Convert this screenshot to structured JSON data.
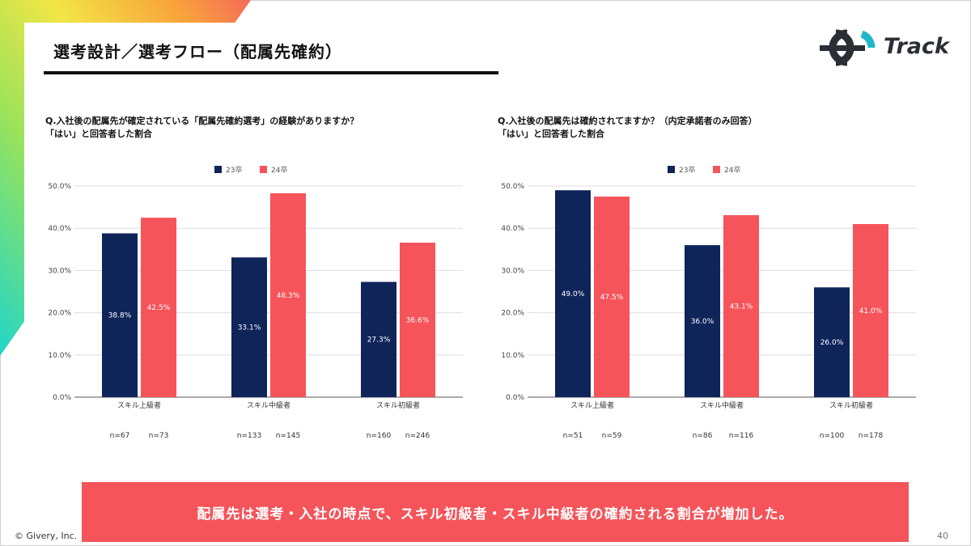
{
  "slide": {
    "title": "選考設計／選考フロー（配属先確約）",
    "logo_text": "Track",
    "footer": "© Givery, Inc.",
    "page_number": "40",
    "conclusion": "配属先は選考・入社の時点で、スキル初級者・スキル中級者の確約される割合が増加した。"
  },
  "questions": [
    {
      "line1": "Q.入社後の配属先が確定されている「配属先確約選考」の経験がありますか？",
      "line2": "「はい」と回答者した割合"
    },
    {
      "line1": "Q.入社後の配属先は確約されてますか？（内定承諾者のみ回答）",
      "line2": "「はい」と回答者した割合"
    }
  ],
  "colors": {
    "series_23": "#0f2459",
    "series_24": "#f5545a",
    "banner": "#f5545a"
  },
  "chart_data": [
    {
      "type": "bar",
      "title": "Q.入社後の配属先が確定されている「配属先確約選考」の経験がありますか？",
      "categories": [
        "スキル上級者",
        "スキル中級者",
        "スキル初級者"
      ],
      "series": [
        {
          "name": "23卒",
          "values": [
            38.8,
            33.1,
            27.3
          ],
          "labels": [
            "38.8%",
            "33.1%",
            "27.3%"
          ],
          "n": [
            "n=67",
            "n=133",
            "n=160"
          ]
        },
        {
          "name": "24卒",
          "values": [
            42.5,
            48.3,
            36.6
          ],
          "labels": [
            "42.5%",
            "48.3%",
            "36.6%"
          ],
          "n": [
            "n=73",
            "n=145",
            "n=246"
          ]
        }
      ],
      "yticks": [
        0,
        10,
        20,
        30,
        40,
        50
      ],
      "ytick_labels": [
        "0.0%",
        "10.0%",
        "20.0%",
        "30.0%",
        "40.0%",
        "50.0%"
      ],
      "ylim": [
        0,
        50
      ],
      "legend_position": "top-center",
      "xlabel": "",
      "ylabel": ""
    },
    {
      "type": "bar",
      "title": "Q.入社後の配属先は確約されてますか？（内定承諾者のみ回答）",
      "categories": [
        "スキル上級者",
        "スキル中級者",
        "スキル初級者"
      ],
      "series": [
        {
          "name": "23卒",
          "values": [
            49.0,
            36.0,
            26.0
          ],
          "labels": [
            "49.0%",
            "36.0%",
            "26.0%"
          ],
          "n": [
            "n=51",
            "n=86",
            "n=100"
          ]
        },
        {
          "name": "24卒",
          "values": [
            47.5,
            43.1,
            41.0
          ],
          "labels": [
            "47.5%",
            "43.1%",
            "41.0%"
          ],
          "n": [
            "n=59",
            "n=116",
            "n=178"
          ]
        }
      ],
      "yticks": [
        0,
        10,
        20,
        30,
        40,
        50
      ],
      "ytick_labels": [
        "0.0%",
        "10.0%",
        "20.0%",
        "30.0%",
        "40.0%",
        "50.0%"
      ],
      "ylim": [
        0,
        50
      ],
      "legend_position": "top-center",
      "xlabel": "",
      "ylabel": ""
    }
  ]
}
